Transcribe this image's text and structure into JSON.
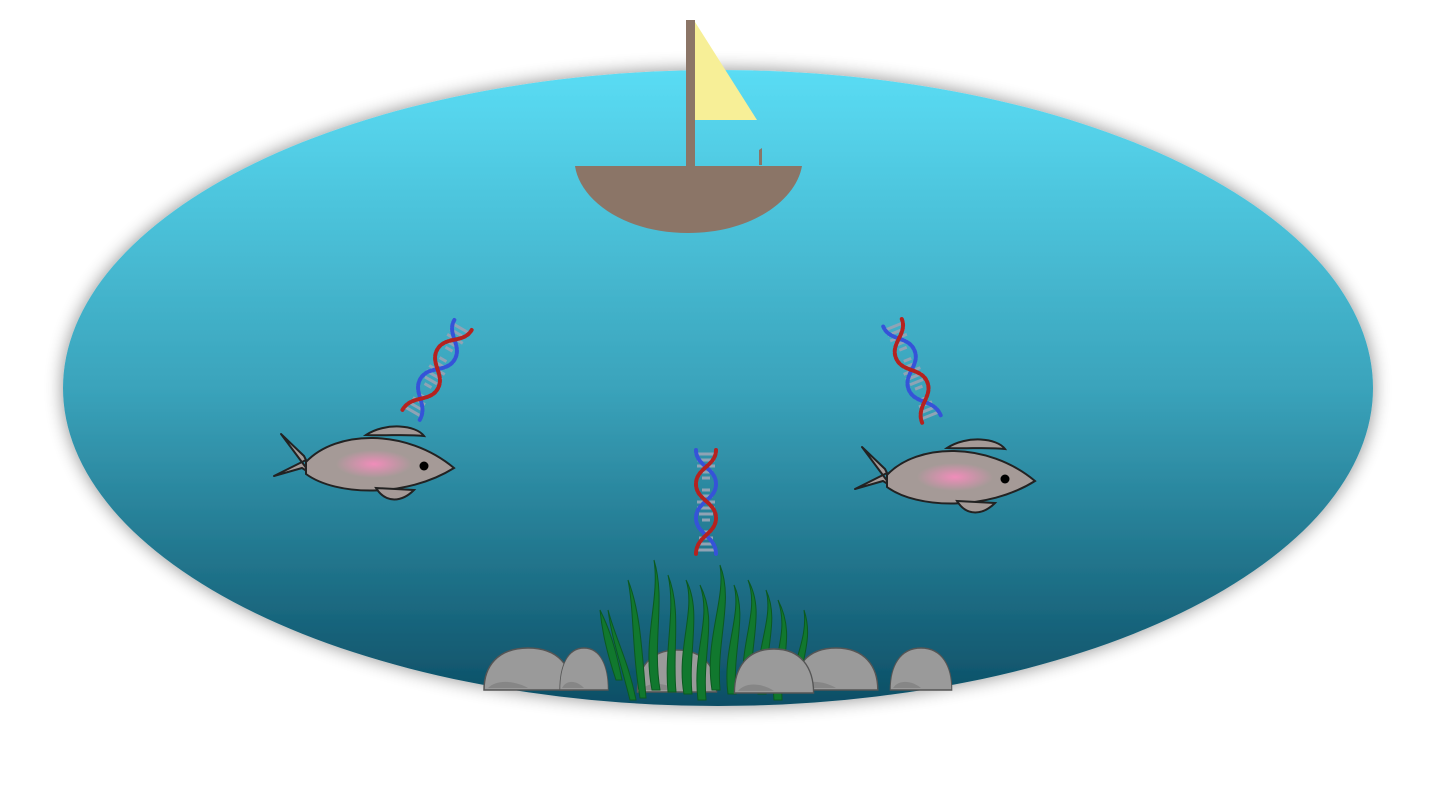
{
  "scene": {
    "kind": "environmental-dna-illustration",
    "elements": [
      "boat-icon",
      "fish-icon",
      "dna-icon",
      "seagrass-icon",
      "rock-icon"
    ],
    "colors": {
      "water_top": "#5adcf4",
      "water_mid": "#3aa3bb",
      "water_bottom": "#0c4e65",
      "boat_hull": "#8b7567",
      "sail": "#f7ef97",
      "fish_body": "#a59a97",
      "fish_belly": "#ee90b8",
      "dna_strand_red": "#b5221f",
      "dna_strand_blue": "#3553d8",
      "dna_rung": "#8fa3b5",
      "seagrass": "#11782e",
      "rock": "#9a9a9a",
      "rock_shadow": "#6f6f6f"
    }
  }
}
